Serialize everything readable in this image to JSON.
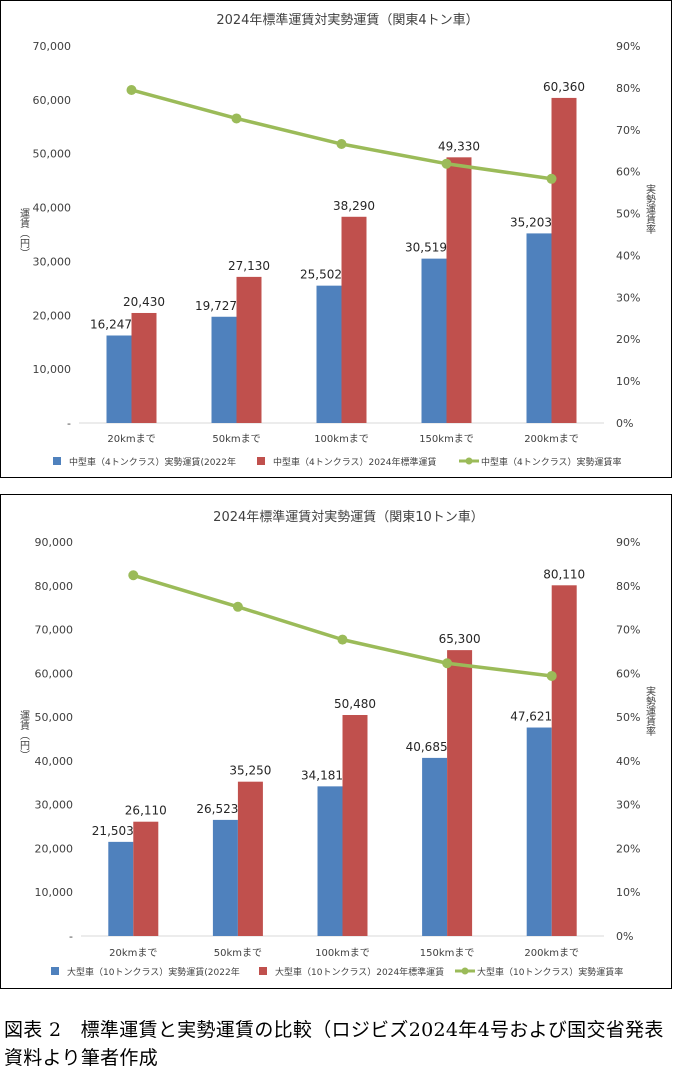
{
  "caption": "図表 2　標準運賃と実勢運賃の比較（ロジビズ2024年4号および国交省発表資料より筆者作成",
  "colors": {
    "blue": "#4f81bd",
    "red": "#c0504d",
    "green": "#9bbb59",
    "grid": "#d9d9d9",
    "text": "#404040"
  },
  "chart_data": [
    {
      "type": "bar",
      "title": "2024年標準運賃対実勢運賃（関東4トン車）",
      "ylabel": "運賃（円）",
      "y2label": "実勢運賃率",
      "categories": [
        "20kmまで",
        "50kmまで",
        "100kmまで",
        "150kmまで",
        "200kmまで"
      ],
      "ylim": [
        0,
        70000
      ],
      "yticks": [
        "-",
        "10,000",
        "20,000",
        "30,000",
        "40,000",
        "50,000",
        "60,000",
        "70,000"
      ],
      "y2lim": [
        0,
        0.9
      ],
      "y2ticks": [
        "0%",
        "10%",
        "20%",
        "30%",
        "40%",
        "50%",
        "60%",
        "70%",
        "80%",
        "90%"
      ],
      "grid": false,
      "legend_position": "bottom",
      "series": [
        {
          "name": "中型車（4トンクラス）実勢運賃(2022年",
          "kind": "bar",
          "values": [
            16247,
            19727,
            25502,
            30519,
            35203
          ],
          "labels": [
            "16,247",
            "19,727",
            "25,502",
            "30,519",
            "35,203"
          ]
        },
        {
          "name": "中型車（4トンクラス）2024年標準運賃",
          "kind": "bar",
          "values": [
            20430,
            27130,
            38290,
            49330,
            60360
          ],
          "labels": [
            "20,430",
            "27,130",
            "38,290",
            "49,330",
            "60,360"
          ]
        },
        {
          "name": "中型車（4トンクラス）実勢運賃率",
          "kind": "line",
          "axis": "right",
          "values": [
            0.795,
            0.727,
            0.666,
            0.619,
            0.583
          ]
        }
      ]
    },
    {
      "type": "bar",
      "title": "2024年標準運賃対実勢運賃（関東10トン車）",
      "ylabel": "運賃（円）",
      "y2label": "実勢運賃率",
      "categories": [
        "20kmまで",
        "50kmまで",
        "100kmまで",
        "150kmまで",
        "200kmまで"
      ],
      "ylim": [
        0,
        90000
      ],
      "yticks": [
        "-",
        "10,000",
        "20,000",
        "30,000",
        "40,000",
        "50,000",
        "60,000",
        "70,000",
        "80,000",
        "90,000"
      ],
      "y2lim": [
        0,
        0.9
      ],
      "y2ticks": [
        "0%",
        "10%",
        "20%",
        "30%",
        "40%",
        "50%",
        "60%",
        "70%",
        "80%",
        "90%"
      ],
      "grid": false,
      "legend_position": "bottom",
      "series": [
        {
          "name": "大型車（10トンクラス）実勢運賃(2022年",
          "kind": "bar",
          "values": [
            21503,
            26523,
            34181,
            40685,
            47621
          ],
          "labels": [
            "21,503",
            "26,523",
            "34,181",
            "40,685",
            "47,621"
          ]
        },
        {
          "name": "大型車（10トンクラス）2024年標準運賃",
          "kind": "bar",
          "values": [
            26110,
            35250,
            50480,
            65300,
            80110
          ],
          "labels": [
            "26,110",
            "35,250",
            "50,480",
            "65,300",
            "80,110"
          ]
        },
        {
          "name": "大型車（10トンクラス）実勢運賃率",
          "kind": "line",
          "axis": "right",
          "values": [
            0.824,
            0.752,
            0.677,
            0.623,
            0.594
          ]
        }
      ]
    }
  ]
}
